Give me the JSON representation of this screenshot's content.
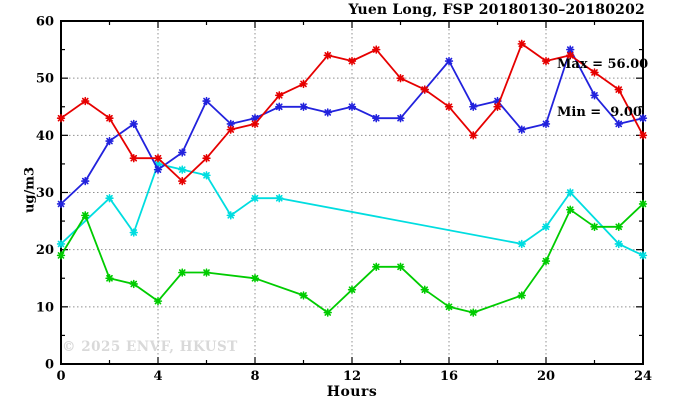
{
  "title": "Yuen Long, FSP 20180130–20180202",
  "annotation": {
    "max_label": "Max = 56.00",
    "min_label": "Min =  9.00"
  },
  "watermark": "© 2025 ENVF, HKUST",
  "chart_data": {
    "type": "line",
    "title": "Yuen Long, FSP 20180130–20180202",
    "xlabel": "Hours",
    "ylabel": "ug/m3",
    "xlim": [
      0,
      24
    ],
    "ylim": [
      0,
      60
    ],
    "x": [
      0,
      1,
      2,
      3,
      4,
      5,
      6,
      7,
      8,
      9,
      10,
      11,
      12,
      13,
      14,
      15,
      16,
      17,
      18,
      19,
      20,
      21,
      22,
      23,
      24
    ],
    "xticks": {
      "major": [
        0,
        4,
        8,
        12,
        16,
        20,
        24
      ],
      "minor_step": 2
    },
    "yticks": {
      "major": [
        0,
        10,
        20,
        30,
        40,
        50,
        60
      ],
      "minor_step": 5
    },
    "grid_x": [
      4,
      8,
      12,
      16,
      20
    ],
    "grid_y": [
      10,
      20,
      30,
      40,
      50
    ],
    "grid_on": true,
    "legend": "none",
    "stats": {
      "max": 56.0,
      "min": 9.0
    },
    "series": [
      {
        "name": "cyan-line",
        "color": "#00dde0",
        "values": [
          21,
          null,
          29,
          23,
          35,
          34,
          33,
          26,
          29,
          29,
          null,
          null,
          null,
          null,
          null,
          null,
          null,
          null,
          null,
          21,
          24,
          30,
          null,
          21,
          19
        ]
      },
      {
        "name": "green-line",
        "color": "#00cc00",
        "values": [
          19,
          26,
          15,
          14,
          11,
          16,
          16,
          null,
          15,
          null,
          12,
          9,
          13,
          17,
          17,
          13,
          10,
          9,
          null,
          12,
          18,
          27,
          24,
          24,
          28
        ]
      },
      {
        "name": "blue-line",
        "color": "#2222dd",
        "values": [
          28,
          32,
          39,
          42,
          34,
          37,
          46,
          42,
          43,
          45,
          45,
          44,
          45,
          43,
          43,
          48,
          53,
          45,
          46,
          41,
          42,
          55,
          47,
          42,
          43
        ]
      },
      {
        "name": "red-line",
        "color": "#e60000",
        "values": [
          43,
          46,
          43,
          36,
          36,
          32,
          36,
          41,
          42,
          47,
          49,
          54,
          53,
          55,
          50,
          48,
          45,
          40,
          45,
          56,
          53,
          54,
          51,
          48,
          40
        ]
      }
    ]
  }
}
